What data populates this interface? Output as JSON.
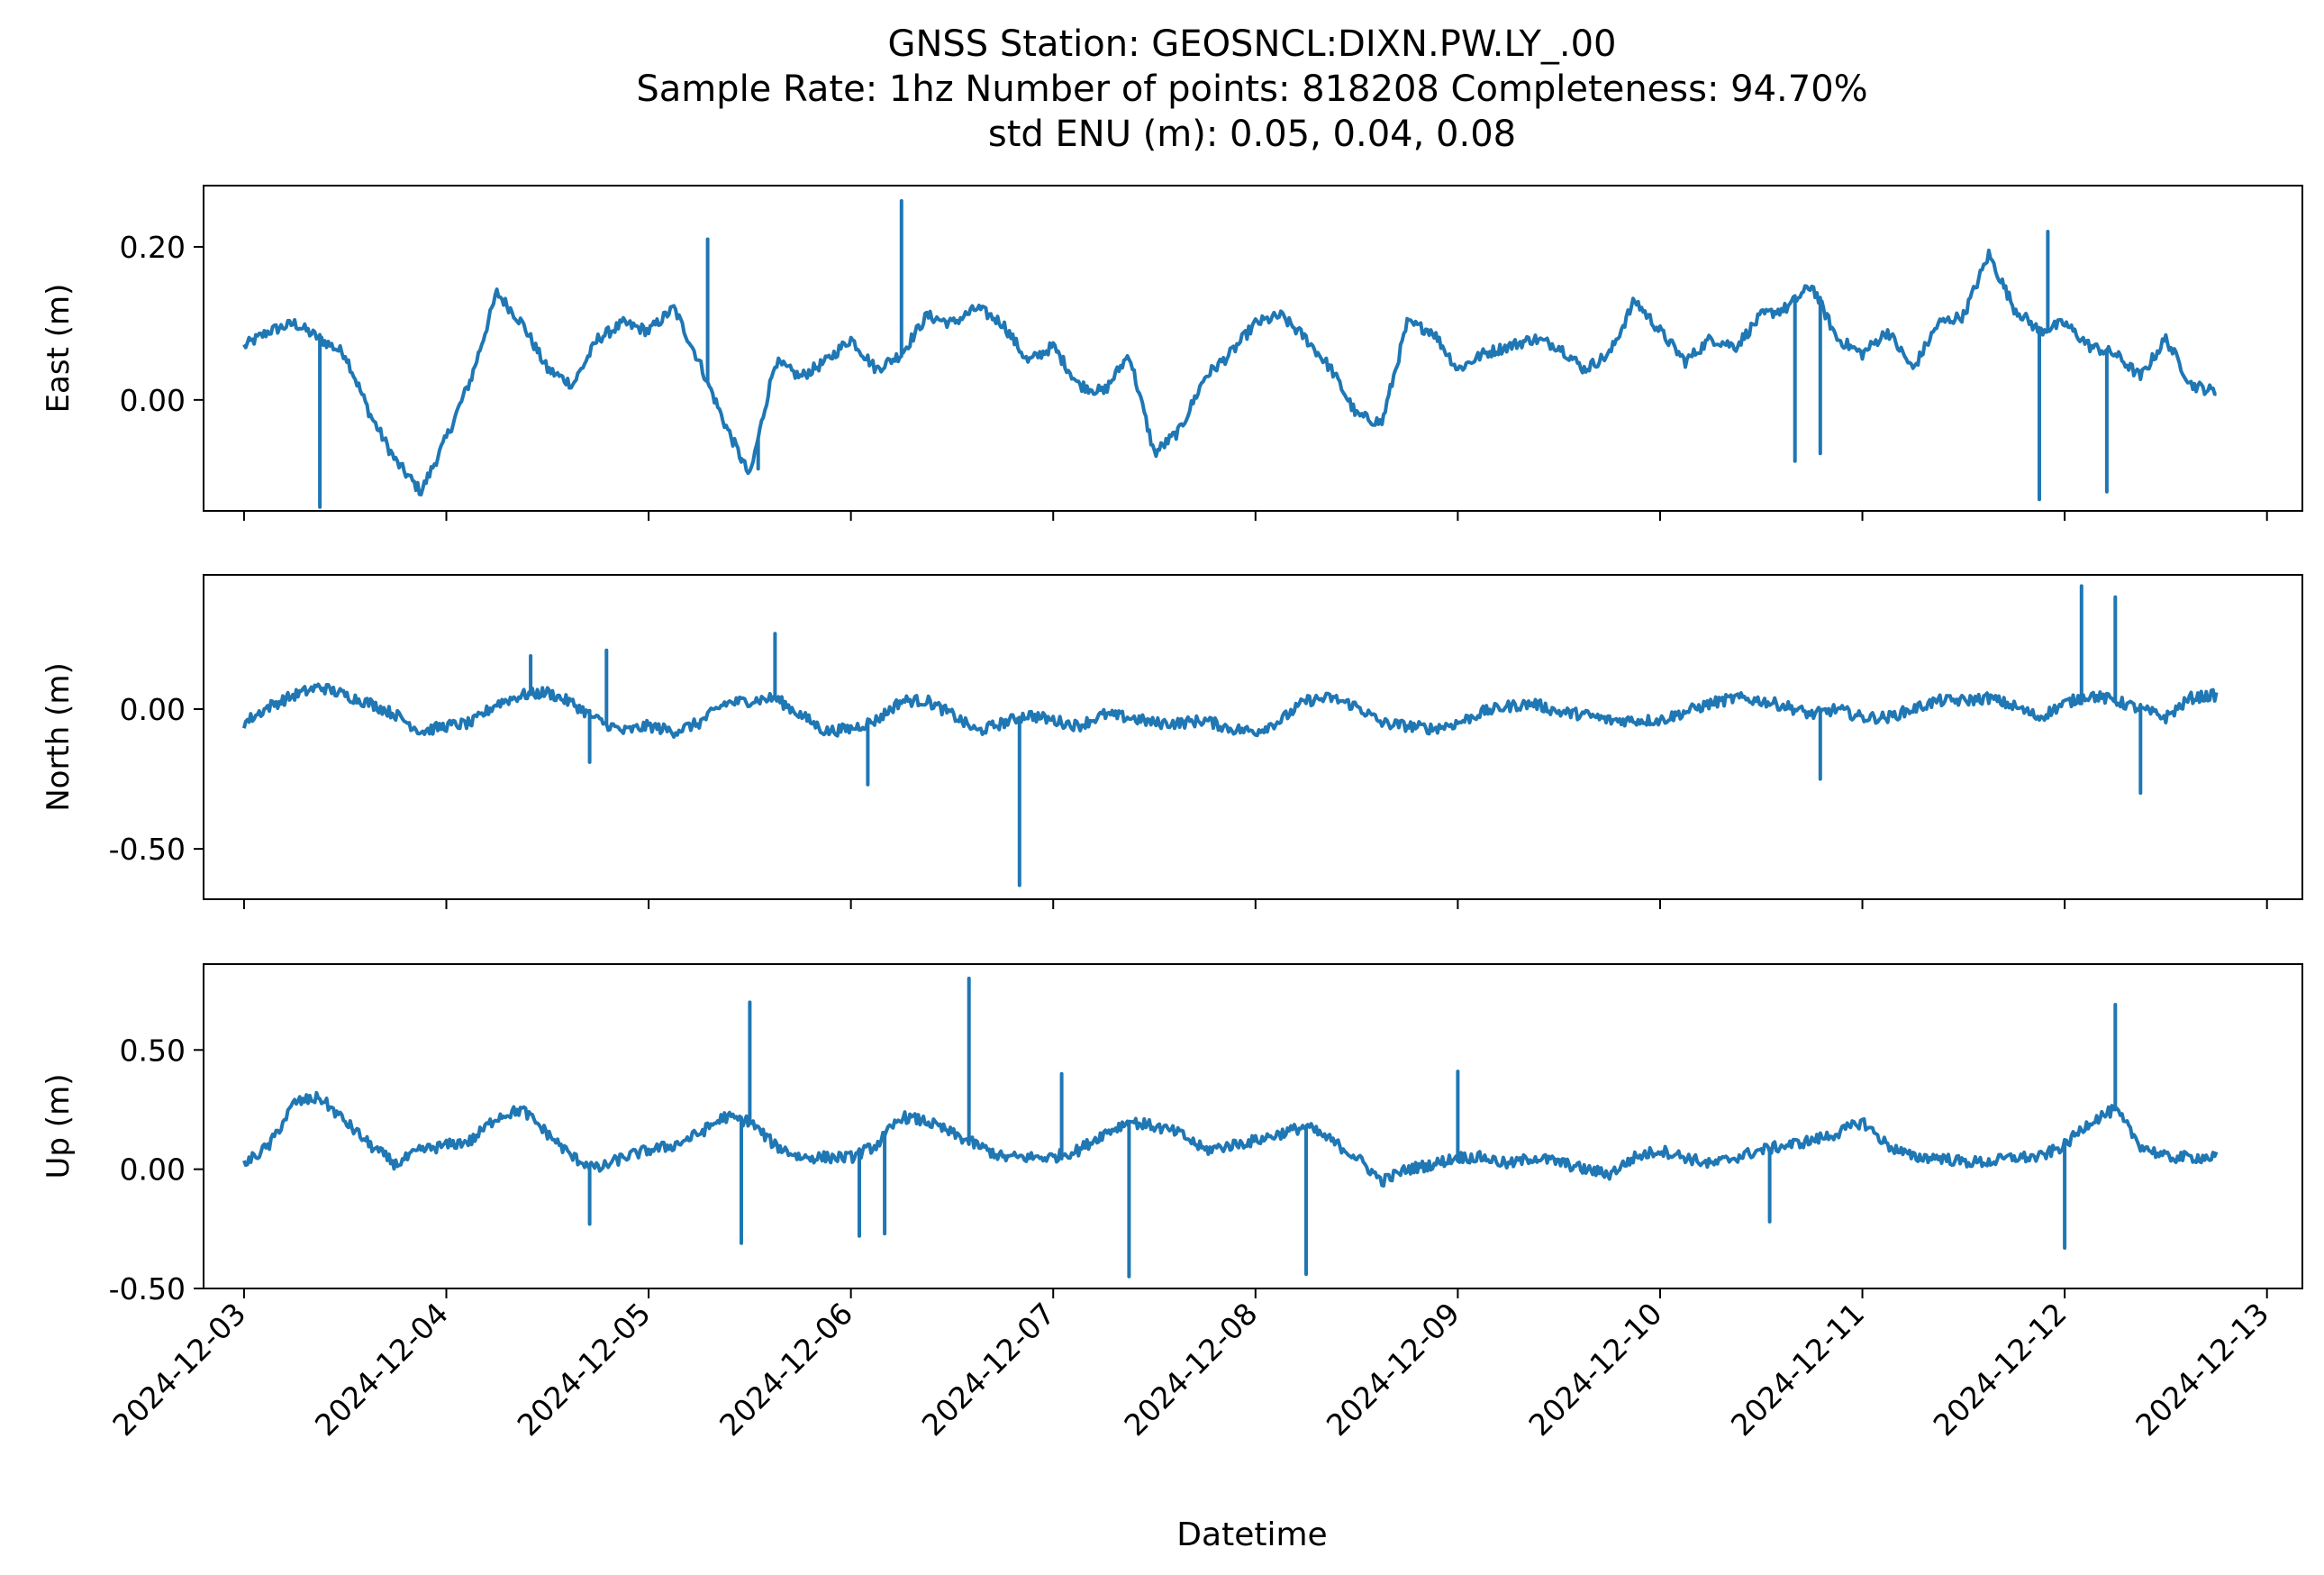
{
  "figure": {
    "title_line1": "GNSS Station: GEOSNCL:DIXN.PW.LY_.00",
    "title_line2": "Sample Rate: 1hz   Number of points: 818208    Completeness:  94.70%",
    "title_line3": "std ENU (m):  0.05, 0.04, 0.08",
    "xlabel": "Datetime",
    "line_color": "#1f77b4"
  },
  "chart_data": {
    "type": "line",
    "x_ticks": [
      "2024-12-03",
      "2024-12-04",
      "2024-12-05",
      "2024-12-06",
      "2024-12-07",
      "2024-12-08",
      "2024-12-09",
      "2024-12-10",
      "2024-12-11",
      "2024-12-12",
      "2024-12-13"
    ],
    "xlim": [
      "2024-12-02T19:12",
      "2024-12-13T04:12"
    ],
    "x_unit": "datetime",
    "panels": [
      {
        "ylabel": "East (m)",
        "ylim": [
          -0.145,
          0.28
        ],
        "yticks": [
          0.0,
          0.2
        ],
        "ytick_labels": [
          "0.00",
          "0.20"
        ],
        "series": [
          {
            "x": [
              "2024-12-03T00:00",
              "2024-12-03T03:00",
              "2024-12-03T06:00",
              "2024-12-03T09:00",
              "2024-12-03T12:00",
              "2024-12-03T15:00",
              "2024-12-03T18:00",
              "2024-12-03T21:00",
              "2024-12-04T00:00",
              "2024-12-04T03:00",
              "2024-12-04T06:00",
              "2024-12-04T09:00",
              "2024-12-04T12:00",
              "2024-12-04T15:00",
              "2024-12-04T18:00",
              "2024-12-04T21:00",
              "2024-12-05T00:00",
              "2024-12-05T03:00",
              "2024-12-05T06:00",
              "2024-12-05T09:00",
              "2024-12-05T12:00",
              "2024-12-05T15:00",
              "2024-12-05T18:00",
              "2024-12-05T21:00",
              "2024-12-06T00:00",
              "2024-12-06T03:00",
              "2024-12-06T06:00",
              "2024-12-06T09:00",
              "2024-12-06T12:00",
              "2024-12-06T15:00",
              "2024-12-06T18:00",
              "2024-12-06T21:00",
              "2024-12-07T00:00",
              "2024-12-07T03:00",
              "2024-12-07T06:00",
              "2024-12-07T09:00",
              "2024-12-07T12:00",
              "2024-12-07T15:00",
              "2024-12-07T18:00",
              "2024-12-07T21:00",
              "2024-12-08T00:00",
              "2024-12-08T03:00",
              "2024-12-08T06:00",
              "2024-12-08T09:00",
              "2024-12-08T12:00",
              "2024-12-08T15:00",
              "2024-12-08T18:00",
              "2024-12-08T21:00",
              "2024-12-09T00:00",
              "2024-12-09T03:00",
              "2024-12-09T06:00",
              "2024-12-09T09:00",
              "2024-12-09T12:00",
              "2024-12-09T15:00",
              "2024-12-09T18:00",
              "2024-12-09T21:00",
              "2024-12-10T00:00",
              "2024-12-10T03:00",
              "2024-12-10T06:00",
              "2024-12-10T09:00",
              "2024-12-10T12:00",
              "2024-12-10T15:00",
              "2024-12-10T18:00",
              "2024-12-10T21:00",
              "2024-12-11T00:00",
              "2024-12-11T03:00",
              "2024-12-11T06:00",
              "2024-12-11T09:00",
              "2024-12-11T12:00",
              "2024-12-11T15:00",
              "2024-12-11T18:00",
              "2024-12-11T21:00",
              "2024-12-12T00:00",
              "2024-12-12T03:00",
              "2024-12-12T06:00",
              "2024-12-12T09:00",
              "2024-12-12T12:00",
              "2024-12-12T15:00",
              "2024-12-12T18:00"
            ],
            "y": [
              0.07,
              0.09,
              0.1,
              0.08,
              0.06,
              -0.02,
              -0.08,
              -0.12,
              -0.05,
              0.03,
              0.14,
              0.1,
              0.04,
              0.02,
              0.08,
              0.1,
              0.09,
              0.12,
              0.05,
              -0.03,
              -0.1,
              0.05,
              0.03,
              0.05,
              0.08,
              0.04,
              0.06,
              0.11,
              0.1,
              0.12,
              0.1,
              0.05,
              0.07,
              0.02,
              0.01,
              0.06,
              -0.07,
              -0.04,
              0.03,
              0.06,
              0.1,
              0.11,
              0.08,
              0.04,
              -0.02,
              -0.03,
              0.1,
              0.09,
              0.04,
              0.06,
              0.07,
              0.08,
              0.07,
              0.04,
              0.06,
              0.13,
              0.09,
              0.05,
              0.08,
              0.07,
              0.11,
              0.12,
              0.15,
              0.08,
              0.06,
              0.09,
              0.04,
              0.1,
              0.11,
              0.19,
              0.12,
              0.09,
              0.1,
              0.07,
              0.06,
              0.03,
              0.08,
              0.02,
              0.01
            ]
          }
        ],
        "spikes": [
          {
            "x": "2024-12-06T06:00",
            "y": 0.26
          },
          {
            "x": "2024-12-05T07:00",
            "y": 0.21
          },
          {
            "x": "2024-12-11T22:00",
            "y": 0.22
          },
          {
            "x": "2024-12-11T21:00",
            "y": -0.13
          },
          {
            "x": "2024-12-12T05:00",
            "y": -0.12
          },
          {
            "x": "2024-12-03T09:00",
            "y": -0.14
          },
          {
            "x": "2024-12-05T11:00",
            "y": -0.08
          },
          {
            "x": "2024-12-05T13:00",
            "y": -0.09
          },
          {
            "x": "2024-12-10T16:00",
            "y": -0.08
          },
          {
            "x": "2024-12-10T19:00",
            "y": -0.07
          }
        ]
      },
      {
        "ylabel": "North (m)",
        "ylim": [
          -0.68,
          0.48
        ],
        "yticks": [
          0.0,
          -0.5
        ],
        "ytick_labels": [
          "0.00",
          "-0.50"
        ],
        "series": [
          {
            "x": [
              "2024-12-03T00:00",
              "2024-12-03T03:00",
              "2024-12-03T06:00",
              "2024-12-03T09:00",
              "2024-12-03T12:00",
              "2024-12-03T15:00",
              "2024-12-03T18:00",
              "2024-12-03T21:00",
              "2024-12-04T00:00",
              "2024-12-04T03:00",
              "2024-12-04T06:00",
              "2024-12-04T09:00",
              "2024-12-04T12:00",
              "2024-12-04T15:00",
              "2024-12-04T18:00",
              "2024-12-04T21:00",
              "2024-12-05T00:00",
              "2024-12-05T03:00",
              "2024-12-05T06:00",
              "2024-12-05T09:00",
              "2024-12-05T12:00",
              "2024-12-05T15:00",
              "2024-12-05T18:00",
              "2024-12-05T21:00",
              "2024-12-06T00:00",
              "2024-12-06T03:00",
              "2024-12-06T06:00",
              "2024-12-06T09:00",
              "2024-12-06T12:00",
              "2024-12-06T15:00",
              "2024-12-06T18:00",
              "2024-12-06T21:00",
              "2024-12-07T00:00",
              "2024-12-07T03:00",
              "2024-12-07T06:00",
              "2024-12-07T09:00",
              "2024-12-07T12:00",
              "2024-12-07T15:00",
              "2024-12-07T18:00",
              "2024-12-07T21:00",
              "2024-12-08T00:00",
              "2024-12-08T03:00",
              "2024-12-08T06:00",
              "2024-12-08T09:00",
              "2024-12-08T12:00",
              "2024-12-08T15:00",
              "2024-12-08T18:00",
              "2024-12-08T21:00",
              "2024-12-09T00:00",
              "2024-12-09T03:00",
              "2024-12-09T06:00",
              "2024-12-09T09:00",
              "2024-12-09T12:00",
              "2024-12-09T15:00",
              "2024-12-09T18:00",
              "2024-12-09T21:00",
              "2024-12-10T00:00",
              "2024-12-10T03:00",
              "2024-12-10T06:00",
              "2024-12-10T09:00",
              "2024-12-10T12:00",
              "2024-12-10T15:00",
              "2024-12-10T18:00",
              "2024-12-10T21:00",
              "2024-12-11T00:00",
              "2024-12-11T03:00",
              "2024-12-11T06:00",
              "2024-12-11T09:00",
              "2024-12-11T12:00",
              "2024-12-11T15:00",
              "2024-12-11T18:00",
              "2024-12-11T21:00",
              "2024-12-12T00:00",
              "2024-12-12T03:00",
              "2024-12-12T06:00",
              "2024-12-12T09:00",
              "2024-12-12T12:00",
              "2024-12-12T15:00",
              "2024-12-12T18:00"
            ],
            "y": [
              -0.05,
              0.01,
              0.05,
              0.08,
              0.05,
              0.02,
              -0.02,
              -0.08,
              -0.06,
              -0.05,
              0.02,
              0.05,
              0.06,
              0.02,
              -0.04,
              -0.08,
              -0.06,
              -0.08,
              -0.05,
              0.02,
              0.03,
              0.04,
              -0.02,
              -0.08,
              -0.07,
              -0.04,
              0.03,
              0.03,
              -0.02,
              -0.08,
              -0.05,
              -0.02,
              -0.04,
              -0.06,
              -0.02,
              -0.03,
              -0.05,
              -0.05,
              -0.04,
              -0.07,
              -0.08,
              -0.04,
              0.03,
              0.04,
              0.01,
              -0.05,
              -0.06,
              -0.07,
              -0.05,
              -0.01,
              0.01,
              0.02,
              -0.01,
              -0.02,
              -0.04,
              -0.04,
              -0.04,
              -0.01,
              0.02,
              0.04,
              0.03,
              0.01,
              -0.02,
              0.0,
              -0.03,
              -0.03,
              0.0,
              0.03,
              0.03,
              0.04,
              0.01,
              -0.03,
              0.02,
              0.05,
              0.03,
              0.0,
              -0.03,
              0.04,
              0.05
            ]
          }
        ],
        "spikes": [
          {
            "x": "2024-12-06T20:00",
            "y": -0.63
          },
          {
            "x": "2024-12-12T02:00",
            "y": 0.44
          },
          {
            "x": "2024-12-12T06:00",
            "y": 0.4
          },
          {
            "x": "2024-12-05T15:00",
            "y": 0.27
          },
          {
            "x": "2024-12-06T02:00",
            "y": -0.27
          },
          {
            "x": "2024-12-10T19:00",
            "y": -0.25
          },
          {
            "x": "2024-12-12T09:00",
            "y": -0.3
          },
          {
            "x": "2024-12-04T19:00",
            "y": 0.21
          },
          {
            "x": "2024-12-04T10:00",
            "y": 0.19
          },
          {
            "x": "2024-12-04T17:00",
            "y": -0.19
          }
        ]
      },
      {
        "ylabel": "Up (m)",
        "ylim": [
          -0.5,
          0.86
        ],
        "yticks": [
          -0.5,
          0.0,
          0.5
        ],
        "ytick_labels": [
          "-0.50",
          "0.00",
          "0.50"
        ],
        "series": [
          {
            "x": [
              "2024-12-03T00:00",
              "2024-12-03T03:00",
              "2024-12-03T06:00",
              "2024-12-03T09:00",
              "2024-12-03T12:00",
              "2024-12-03T15:00",
              "2024-12-03T18:00",
              "2024-12-03T21:00",
              "2024-12-04T00:00",
              "2024-12-04T03:00",
              "2024-12-04T06:00",
              "2024-12-04T09:00",
              "2024-12-04T12:00",
              "2024-12-04T15:00",
              "2024-12-04T18:00",
              "2024-12-04T21:00",
              "2024-12-05T00:00",
              "2024-12-05T03:00",
              "2024-12-05T06:00",
              "2024-12-05T09:00",
              "2024-12-05T12:00",
              "2024-12-05T15:00",
              "2024-12-05T18:00",
              "2024-12-05T21:00",
              "2024-12-06T00:00",
              "2024-12-06T03:00",
              "2024-12-06T06:00",
              "2024-12-06T09:00",
              "2024-12-06T12:00",
              "2024-12-06T15:00",
              "2024-12-06T18:00",
              "2024-12-06T21:00",
              "2024-12-07T00:00",
              "2024-12-07T03:00",
              "2024-12-07T06:00",
              "2024-12-07T09:00",
              "2024-12-07T12:00",
              "2024-12-07T15:00",
              "2024-12-07T18:00",
              "2024-12-07T21:00",
              "2024-12-08T00:00",
              "2024-12-08T03:00",
              "2024-12-08T06:00",
              "2024-12-08T09:00",
              "2024-12-08T12:00",
              "2024-12-08T15:00",
              "2024-12-08T18:00",
              "2024-12-08T21:00",
              "2024-12-09T00:00",
              "2024-12-09T03:00",
              "2024-12-09T06:00",
              "2024-12-09T09:00",
              "2024-12-09T12:00",
              "2024-12-09T15:00",
              "2024-12-09T18:00",
              "2024-12-09T21:00",
              "2024-12-10T00:00",
              "2024-12-10T03:00",
              "2024-12-10T06:00",
              "2024-12-10T09:00",
              "2024-12-10T12:00",
              "2024-12-10T15:00",
              "2024-12-10T18:00",
              "2024-12-10T21:00",
              "2024-12-11T00:00",
              "2024-12-11T03:00",
              "2024-12-11T06:00",
              "2024-12-11T09:00",
              "2024-12-11T12:00",
              "2024-12-11T15:00",
              "2024-12-11T18:00",
              "2024-12-11T21:00",
              "2024-12-12T00:00",
              "2024-12-12T03:00",
              "2024-12-12T06:00",
              "2024-12-12T09:00",
              "2024-12-12T12:00",
              "2024-12-12T15:00",
              "2024-12-12T18:00"
            ],
            "y": [
              0.02,
              0.1,
              0.28,
              0.3,
              0.2,
              0.1,
              0.02,
              0.08,
              0.1,
              0.12,
              0.22,
              0.25,
              0.15,
              0.05,
              0.0,
              0.05,
              0.08,
              0.1,
              0.15,
              0.22,
              0.2,
              0.1,
              0.05,
              0.05,
              0.05,
              0.1,
              0.22,
              0.2,
              0.15,
              0.1,
              0.05,
              0.05,
              0.05,
              0.08,
              0.15,
              0.2,
              0.18,
              0.15,
              0.08,
              0.1,
              0.12,
              0.15,
              0.18,
              0.12,
              0.05,
              -0.05,
              0.0,
              0.02,
              0.05,
              0.05,
              0.02,
              0.05,
              0.03,
              0.0,
              -0.02,
              0.05,
              0.08,
              0.05,
              0.02,
              0.05,
              0.08,
              0.1,
              0.12,
              0.15,
              0.2,
              0.1,
              0.05,
              0.05,
              0.03,
              0.03,
              0.05,
              0.05,
              0.1,
              0.2,
              0.25,
              0.1,
              0.05,
              0.05,
              0.05
            ]
          }
        ],
        "spikes": [
          {
            "x": "2024-12-06T14:00",
            "y": 0.8
          },
          {
            "x": "2024-12-05T12:00",
            "y": 0.7
          },
          {
            "x": "2024-12-12T06:00",
            "y": 0.69
          },
          {
            "x": "2024-12-07T09:00",
            "y": -0.45
          },
          {
            "x": "2024-12-08T06:00",
            "y": -0.44
          },
          {
            "x": "2024-12-05T11:00",
            "y": -0.31
          },
          {
            "x": "2024-12-12T00:00",
            "y": -0.33
          },
          {
            "x": "2024-12-09T00:00",
            "y": 0.41
          },
          {
            "x": "2024-12-06T01:00",
            "y": -0.28
          },
          {
            "x": "2024-12-06T04:00",
            "y": -0.27
          },
          {
            "x": "2024-12-04T17:00",
            "y": -0.23
          },
          {
            "x": "2024-12-07T01:00",
            "y": 0.4
          },
          {
            "x": "2024-12-10T13:00",
            "y": -0.22
          }
        ]
      }
    ]
  }
}
